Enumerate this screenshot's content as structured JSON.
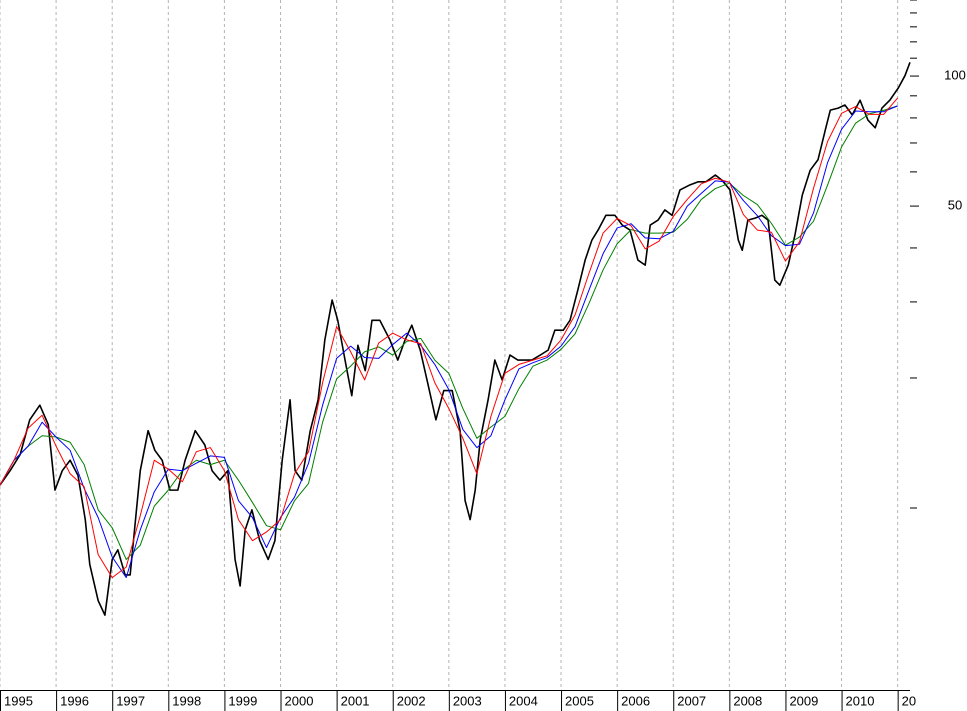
{
  "chart_data": {
    "type": "line",
    "log": true,
    "grid_x": true,
    "xlim": [
      1995,
      2011.22
    ],
    "ylim": [
      3.79,
      150
    ],
    "xticks": [
      1995,
      1996,
      1997,
      1998,
      1999,
      2000,
      2001,
      2002,
      2003,
      2004,
      2005,
      2006,
      2007,
      2008,
      2009,
      2010,
      {
        "value": 2011,
        "label": "20"
      }
    ],
    "yticks": [
      50,
      100
    ],
    "minor_yticks": [
      10,
      20,
      30,
      40,
      60,
      70,
      80,
      90,
      110,
      120,
      130,
      140,
      150
    ],
    "series": [
      {
        "color": "#000000",
        "x": [
          1995.0,
          1995.18,
          1995.36,
          1995.53,
          1995.71,
          1995.86,
          1995.98,
          1996.11,
          1996.25,
          1996.39,
          1996.52,
          1996.6,
          1996.75,
          1996.87,
          1997.0,
          1997.1,
          1997.23,
          1997.32,
          1997.5,
          1997.64,
          1997.76,
          1997.89,
          1998.03,
          1998.17,
          1998.3,
          1998.48,
          1998.65,
          1998.78,
          1998.92,
          1999.06,
          1999.19,
          1999.28,
          1999.37,
          1999.49,
          1999.63,
          1999.78,
          1999.9,
          2000.03,
          2000.17,
          2000.26,
          2000.38,
          2000.53,
          2000.67,
          2000.79,
          2000.92,
          2001.02,
          2001.15,
          2001.27,
          2001.38,
          2001.51,
          2001.63,
          2001.77,
          2001.95,
          2002.09,
          2002.22,
          2002.34,
          2002.49,
          2002.63,
          2002.77,
          2002.91,
          2003.06,
          2003.2,
          2003.29,
          2003.38,
          2003.47,
          2003.56,
          2003.7,
          2003.82,
          2003.95,
          2004.09,
          2004.23,
          2004.36,
          2004.48,
          2004.63,
          2004.77,
          2004.89,
          2005.04,
          2005.16,
          2005.3,
          2005.43,
          2005.55,
          2005.66,
          2005.8,
          2005.96,
          2006.09,
          2006.23,
          2006.37,
          2006.5,
          2006.59,
          2006.73,
          2006.85,
          2006.98,
          2007.12,
          2007.3,
          2007.44,
          2007.58,
          2007.75,
          2007.87,
          2008.01,
          2008.16,
          2008.23,
          2008.33,
          2008.46,
          2008.58,
          2008.69,
          2008.76,
          2008.81,
          2008.9,
          2009.05,
          2009.17,
          2009.3,
          2009.44,
          2009.58,
          2009.71,
          2009.8,
          2009.94,
          2010.06,
          2010.19,
          2010.33,
          2010.47,
          2010.6,
          2010.72,
          2010.86,
          2011.01,
          2011.13,
          2011.22
        ],
        "values": [
          11.3,
          12.2,
          13.3,
          16.0,
          17.3,
          15.6,
          11.0,
          12.2,
          12.9,
          11.9,
          9.4,
          7.4,
          6.1,
          5.65,
          7.6,
          8.0,
          7.0,
          7.0,
          12.2,
          15.1,
          13.6,
          12.9,
          11.0,
          11.0,
          12.9,
          15.1,
          14.0,
          12.2,
          11.6,
          12.2,
          7.6,
          6.6,
          8.9,
          9.9,
          8.4,
          7.6,
          8.4,
          12.9,
          17.8,
          12.2,
          11.6,
          15.1,
          17.8,
          24.5,
          30.3,
          27.2,
          22.0,
          18.2,
          23.8,
          20.8,
          27.2,
          27.2,
          24.5,
          22.0,
          24.5,
          26.5,
          23.2,
          19.3,
          16.0,
          18.7,
          18.7,
          15.1,
          10.4,
          9.4,
          11.0,
          14.4,
          17.8,
          22.0,
          19.8,
          22.6,
          22.0,
          22.0,
          22.0,
          22.6,
          23.2,
          25.8,
          25.8,
          27.2,
          32.0,
          37.5,
          41.7,
          44.0,
          47.6,
          47.6,
          45.2,
          44.0,
          37.5,
          36.5,
          45.2,
          46.4,
          49.0,
          47.6,
          54.5,
          56.0,
          56.9,
          56.9,
          59.0,
          57.4,
          54.5,
          41.7,
          39.5,
          46.4,
          46.9,
          47.6,
          46.4,
          38.5,
          33.7,
          32.8,
          36.5,
          42.9,
          53.0,
          60.5,
          64.0,
          75.0,
          83.4,
          84.3,
          85.7,
          81.3,
          87.9,
          79.1,
          75.9,
          84.3,
          87.9,
          93.8,
          100.2,
          107.6
        ]
      },
      {
        "color": "#008000",
        "x": [
          1995,
          1995.25,
          1995.5,
          1995.75,
          1996,
          1996.25,
          1996.5,
          1996.75,
          1997,
          1997.25,
          1997.5,
          1997.75,
          1998,
          1998.25,
          1998.5,
          1998.75,
          1999,
          1999.25,
          1999.5,
          1999.75,
          2000,
          2000.25,
          2000.5,
          2000.75,
          2001,
          2001.25,
          2001.5,
          2001.75,
          2002,
          2002.25,
          2002.5,
          2002.75,
          2003,
          2003.25,
          2003.5,
          2003.75,
          2004,
          2004.25,
          2004.5,
          2004.75,
          2005,
          2005.25,
          2005.5,
          2005.75,
          2006,
          2006.25,
          2006.5,
          2006.75,
          2007,
          2007.25,
          2007.5,
          2007.75,
          2008,
          2008.25,
          2008.5,
          2008.75,
          2009,
          2009.25,
          2009.5,
          2009.75,
          2010,
          2010.25,
          2010.5,
          2010.75,
          2011
        ],
        "values": [
          11.3,
          12.9,
          13.9,
          14.7,
          14.6,
          14.2,
          12.6,
          9.9,
          9.0,
          7.6,
          8.2,
          10.1,
          11.0,
          12.2,
          12.9,
          12.6,
          12.9,
          11.6,
          10.3,
          9.1,
          8.9,
          10.4,
          11.4,
          15.8,
          19.9,
          21.3,
          23.0,
          23.6,
          22.6,
          24.3,
          24.7,
          22.0,
          20.5,
          17.0,
          14.5,
          15.4,
          16.3,
          18.9,
          21.3,
          22.0,
          23.3,
          25.3,
          29.8,
          35.6,
          40.9,
          44.1,
          43.3,
          43.3,
          43.5,
          46.6,
          51.8,
          54.9,
          56.5,
          52.9,
          50.4,
          45.6,
          40.6,
          42.4,
          46.1,
          55.9,
          68.5,
          77.8,
          81.8,
          83.3,
          85.3
        ]
      },
      {
        "color": "#0000ff",
        "x": [
          1995,
          1995.25,
          1995.5,
          1995.75,
          1996,
          1996.25,
          1996.5,
          1996.75,
          1997,
          1997.25,
          1997.5,
          1997.75,
          1998,
          1998.25,
          1998.5,
          1998.75,
          1999,
          1999.25,
          1999.5,
          1999.75,
          2000,
          2000.25,
          2000.5,
          2000.75,
          2001,
          2001.25,
          2001.5,
          2001.75,
          2002,
          2002.25,
          2002.5,
          2002.75,
          2003,
          2003.25,
          2003.5,
          2003.75,
          2004,
          2004.25,
          2004.5,
          2004.75,
          2005,
          2005.25,
          2005.5,
          2005.75,
          2006,
          2006.25,
          2006.5,
          2006.75,
          2007,
          2007.25,
          2007.5,
          2007.75,
          2008,
          2008.25,
          2008.5,
          2008.75,
          2009,
          2009.25,
          2009.5,
          2009.75,
          2010,
          2010.25,
          2010.5,
          2010.75,
          2011
        ],
        "values": [
          11.3,
          12.9,
          13.9,
          15.8,
          14.6,
          13.6,
          11.1,
          9.5,
          7.7,
          6.9,
          8.9,
          10.9,
          12.3,
          12.2,
          12.7,
          13.2,
          13.1,
          10.4,
          9.5,
          8.1,
          9.5,
          10.6,
          12.7,
          17.3,
          22.2,
          23.7,
          22.3,
          22.2,
          23.9,
          25.4,
          23.8,
          21.5,
          18.8,
          15.2,
          13.8,
          14.7,
          17.8,
          21.0,
          21.7,
          22.3,
          23.7,
          26.3,
          32.0,
          38.8,
          44.5,
          45.5,
          42.2,
          42.0,
          43.7,
          50.0,
          53.5,
          57.2,
          56.8,
          51.5,
          47.5,
          42.7,
          40.5,
          40.8,
          48.2,
          63.0,
          75.3,
          83.0,
          82.7,
          82.7,
          85.3
        ]
      },
      {
        "color": "#ff0000",
        "x": [
          1995,
          1995.25,
          1995.5,
          1995.75,
          1996,
          1996.25,
          1996.5,
          1996.75,
          1997,
          1997.25,
          1997.5,
          1997.75,
          1998,
          1998.25,
          1998.5,
          1998.75,
          1999,
          1999.25,
          1999.5,
          1999.75,
          2000,
          2000.25,
          2000.5,
          2000.75,
          2001,
          2001.25,
          2001.5,
          2001.75,
          2002,
          2002.25,
          2002.5,
          2002.75,
          2003,
          2003.25,
          2003.5,
          2003.75,
          2004,
          2004.25,
          2004.5,
          2004.75,
          2005,
          2005.25,
          2005.5,
          2005.75,
          2006,
          2006.25,
          2006.5,
          2006.75,
          2007,
          2007.25,
          2007.5,
          2007.75,
          2008,
          2008.25,
          2008.5,
          2008.75,
          2009,
          2009.25,
          2009.5,
          2009.75,
          2010,
          2010.25,
          2010.5,
          2010.75,
          2011
        ],
        "values": [
          11.3,
          12.9,
          15.3,
          16.4,
          13.9,
          12.0,
          11.2,
          7.8,
          6.9,
          7.3,
          9.6,
          12.9,
          12.3,
          11.5,
          13.5,
          13.8,
          12.2,
          9.4,
          8.4,
          8.8,
          9.4,
          12.0,
          13.5,
          19.5,
          26.3,
          23.0,
          19.8,
          24.1,
          25.4,
          24.5,
          24.0,
          19.5,
          17.0,
          14.5,
          12.0,
          16.3,
          20.5,
          21.5,
          22.0,
          22.5,
          24.5,
          28.0,
          35.0,
          43.3,
          46.8,
          45.0,
          39.8,
          41.5,
          47.3,
          51.8,
          56.3,
          58.0,
          56.8,
          47.8,
          44.0,
          43.5,
          37.3,
          41.3,
          55.0,
          70.5,
          82.0,
          85.0,
          81.5,
          81.5,
          89.0
        ]
      }
    ]
  }
}
